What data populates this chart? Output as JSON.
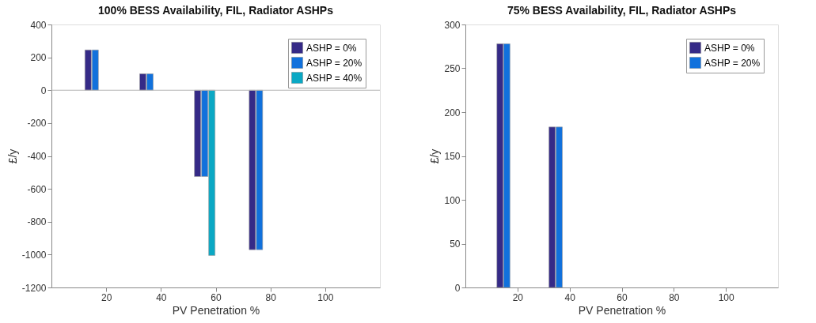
{
  "chart_data": [
    {
      "type": "bar",
      "title": "100% BESS Availability, FIL, Radiator ASHPs",
      "xlabel": "PV Penetration %",
      "ylabel": "£/y",
      "series": [
        {
          "name": "ASHP = 0%",
          "color": "#352a87",
          "x": [
            13.4,
            33.4,
            53.4,
            73.4
          ],
          "values": [
            245,
            100,
            -525,
            -970
          ]
        },
        {
          "name": "ASHP = 20%",
          "color": "#1171dc",
          "x": [
            16,
            36,
            56,
            76
          ],
          "values": [
            245,
            100,
            -525,
            -970
          ]
        },
        {
          "name": "ASHP = 40%",
          "color": "#0aa8c4",
          "x": [
            58.6
          ],
          "values": [
            -1005
          ]
        }
      ],
      "xlim": [
        0,
        120
      ],
      "xticks": [
        20,
        40,
        60,
        80,
        100
      ],
      "ylim": [
        -1200,
        400
      ],
      "yticks": [
        -1200,
        -1000,
        -800,
        -600,
        -400,
        -200,
        0,
        200,
        400
      ],
      "ref_lines": [
        {
          "axis": "y",
          "value": 0,
          "color": "#b4b4b4"
        }
      ],
      "grid": false,
      "legend": "top right"
    },
    {
      "type": "bar",
      "title": "75% BESS Availability, FIL, Radiator ASHPs",
      "xlabel": "PV Penetration %",
      "ylabel": "£/y",
      "series": [
        {
          "name": "ASHP = 0%",
          "color": "#352a87",
          "x": [
            13.3,
            33.3
          ],
          "values": [
            278,
            183
          ]
        },
        {
          "name": "ASHP = 20%",
          "color": "#1171dc",
          "x": [
            15.9,
            36
          ],
          "values": [
            278,
            183
          ]
        }
      ],
      "xlim": [
        0,
        120
      ],
      "xticks": [
        20,
        40,
        60,
        80,
        100
      ],
      "ylim": [
        0,
        300
      ],
      "yticks": [
        0,
        50,
        100,
        150,
        200,
        250,
        300
      ],
      "grid": false,
      "legend": "top right"
    }
  ]
}
